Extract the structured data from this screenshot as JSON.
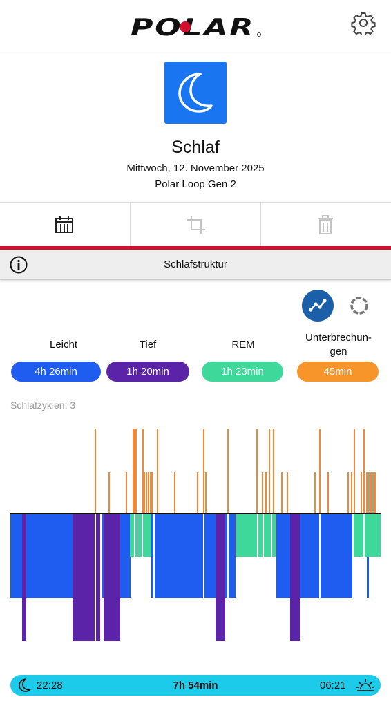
{
  "header": {
    "logo_text": "POLAR",
    "settings_icon": "gear-icon"
  },
  "summary": {
    "icon": "moon-icon",
    "title": "Schlaf",
    "date": "Mittwoch, 12. November 2025",
    "device": "Polar Loop Gen 2"
  },
  "toolbar": {
    "items": [
      {
        "icon": "calendar-icon",
        "enabled": true
      },
      {
        "icon": "crop-icon",
        "enabled": false
      },
      {
        "icon": "trash-icon",
        "enabled": false
      }
    ]
  },
  "section": {
    "info_icon": "info-icon",
    "title": "Schlafstruktur"
  },
  "view_toggle": {
    "graph_icon": "graph-icon",
    "ring_icon": "ring-icon",
    "selected": "graph"
  },
  "stages": [
    {
      "label": "Leicht",
      "value": "4h 26min",
      "color": "#1f5cf0"
    },
    {
      "label": "Tief",
      "value": "1h 20min",
      "color": "#5b24a8"
    },
    {
      "label": "REM",
      "value": "1h 23min",
      "color": "#3ed89a"
    },
    {
      "label": "Unterbrechun-\ngen",
      "value": "45min",
      "color": "#f7952b"
    }
  ],
  "cycles_label": "Schlafzyklen: 3",
  "colors": {
    "light": "#1f5cf0",
    "deep": "#5b24a8",
    "rem": "#3ed89a",
    "interruption": "#f0883a",
    "timebar": "#1ccbea",
    "accent_red": "#d0102c"
  },
  "timeline": {
    "start": "22:28",
    "duration": "7h 54min",
    "end": "06:21"
  }
}
